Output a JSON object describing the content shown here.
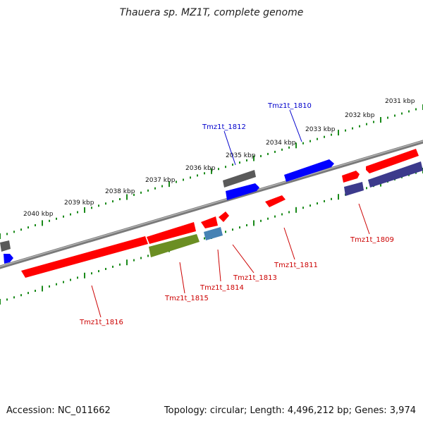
{
  "title": "Thauera sp. MZ1T, complete genome",
  "footer": {
    "accession": "Accession: NC_011662",
    "summary": "Topology: circular; Length: 4,496,212 bp; Genes: 3,974"
  },
  "colors": {
    "backbone": "#7a7a7a",
    "ticks": "#1a8a1a",
    "red": "#ff0000",
    "blue": "#0000ff",
    "gray": "#5a5a5a",
    "olive": "#6b8e23",
    "steel": "#4682b4",
    "purple": "#3c3a8c",
    "label_blue": "#0000cc",
    "label_red": "#cc0000"
  },
  "kbp_labels": [
    "2031 kbp",
    "2032 kbp",
    "2033 kbp",
    "2034 kbp",
    "2035 kbp",
    "2036 kbp",
    "2037 kbp",
    "2038 kbp",
    "2039 kbp",
    "2040 kbp"
  ],
  "gene_labels": [
    {
      "id": "Tmz1t_1810",
      "color": "blue"
    },
    {
      "id": "Tmz1t_1812",
      "color": "blue"
    },
    {
      "id": "Tmz1t_1809",
      "color": "red"
    },
    {
      "id": "Tmz1t_1811",
      "color": "red"
    },
    {
      "id": "Tmz1t_1813",
      "color": "red"
    },
    {
      "id": "Tmz1t_1814",
      "color": "red"
    },
    {
      "id": "Tmz1t_1815",
      "color": "red"
    },
    {
      "id": "Tmz1t_1816",
      "color": "red"
    }
  ]
}
